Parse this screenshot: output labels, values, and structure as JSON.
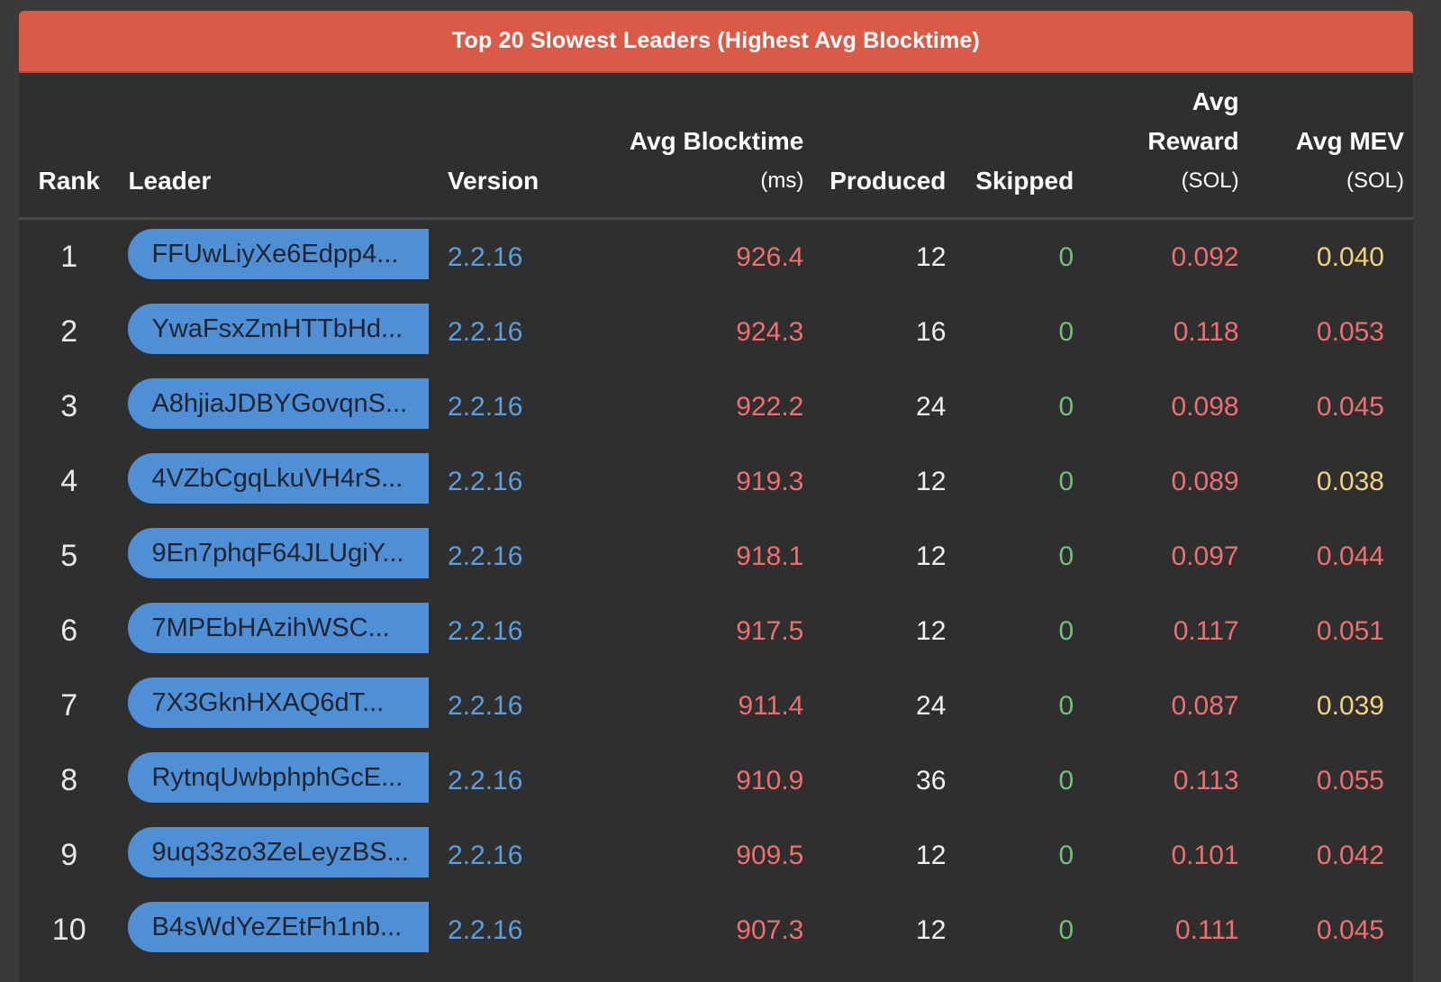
{
  "title": "Top 20 Slowest Leaders (Highest Avg Blocktime)",
  "columns": {
    "rank": "Rank",
    "leader": "Leader",
    "version": "Version",
    "blocktime": "Avg Blocktime",
    "blocktime_unit": "(ms)",
    "produced": "Produced",
    "skipped": "Skipped",
    "reward_l1": "Avg",
    "reward_l2": "Reward",
    "reward_unit": "(SOL)",
    "mev": "Avg MEV",
    "mev_unit": "(SOL)"
  },
  "colors": {
    "title_bar": "#d95a47",
    "leader_pill": "#4e8fd6",
    "version": "#5b9fe0",
    "red_value": "#ee6f6f",
    "green_value": "#6fc17d",
    "yellow_value": "#f2d27a"
  },
  "rows": [
    {
      "rank": "1",
      "leader": "FFUwLiyXe6Edpp4...",
      "version": "2.2.16",
      "blocktime": "926.4",
      "produced": "12",
      "skipped": "0",
      "reward": "0.092",
      "mev": "0.040",
      "mev_color": "yellow"
    },
    {
      "rank": "2",
      "leader": "YwaFsxZmHTTbHd...",
      "version": "2.2.16",
      "blocktime": "924.3",
      "produced": "16",
      "skipped": "0",
      "reward": "0.118",
      "mev": "0.053",
      "mev_color": "red"
    },
    {
      "rank": "3",
      "leader": "A8hjiaJDBYGovqnS...",
      "version": "2.2.16",
      "blocktime": "922.2",
      "produced": "24",
      "skipped": "0",
      "reward": "0.098",
      "mev": "0.045",
      "mev_color": "red"
    },
    {
      "rank": "4",
      "leader": "4VZbCgqLkuVH4rS...",
      "version": "2.2.16",
      "blocktime": "919.3",
      "produced": "12",
      "skipped": "0",
      "reward": "0.089",
      "mev": "0.038",
      "mev_color": "yellow"
    },
    {
      "rank": "5",
      "leader": "9En7phqF64JLUgiY...",
      "version": "2.2.16",
      "blocktime": "918.1",
      "produced": "12",
      "skipped": "0",
      "reward": "0.097",
      "mev": "0.044",
      "mev_color": "red"
    },
    {
      "rank": "6",
      "leader": "7MPEbHAzihWSC...",
      "version": "2.2.16",
      "blocktime": "917.5",
      "produced": "12",
      "skipped": "0",
      "reward": "0.117",
      "mev": "0.051",
      "mev_color": "red"
    },
    {
      "rank": "7",
      "leader": "7X3GknHXAQ6dT...",
      "version": "2.2.16",
      "blocktime": "911.4",
      "produced": "24",
      "skipped": "0",
      "reward": "0.087",
      "mev": "0.039",
      "mev_color": "yellow"
    },
    {
      "rank": "8",
      "leader": "RytnqUwbphphGcE...",
      "version": "2.2.16",
      "blocktime": "910.9",
      "produced": "36",
      "skipped": "0",
      "reward": "0.113",
      "mev": "0.055",
      "mev_color": "red"
    },
    {
      "rank": "9",
      "leader": "9uq33zo3ZeLeyzBS...",
      "version": "2.2.16",
      "blocktime": "909.5",
      "produced": "12",
      "skipped": "0",
      "reward": "0.101",
      "mev": "0.042",
      "mev_color": "red"
    },
    {
      "rank": "10",
      "leader": "B4sWdYeZEtFh1nb...",
      "version": "2.2.16",
      "blocktime": "907.3",
      "produced": "12",
      "skipped": "0",
      "reward": "0.111",
      "mev": "0.045",
      "mev_color": "red"
    }
  ]
}
